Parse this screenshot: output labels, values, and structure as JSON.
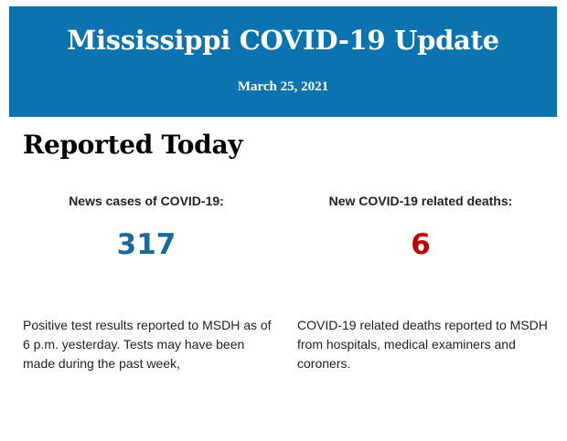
{
  "header": {
    "title": "Mississippi COVID-19 Update",
    "date": "March 25, 2021",
    "background_color": "#0b73b0"
  },
  "section": {
    "title": "Reported Today"
  },
  "stats": [
    {
      "label": "News cases of COVID-19:",
      "value": "317",
      "color": "#1a6a99",
      "description": "Positive test results reported to MSDH as of 6 p.m. yesterday. Tests may have been made during the past week,"
    },
    {
      "label": "New COVID-19 related deaths:",
      "value": "6",
      "color": "#c00000",
      "description": "COVID-19 related deaths reported to MSDH from hospitals, medical examiners and coroners."
    }
  ]
}
